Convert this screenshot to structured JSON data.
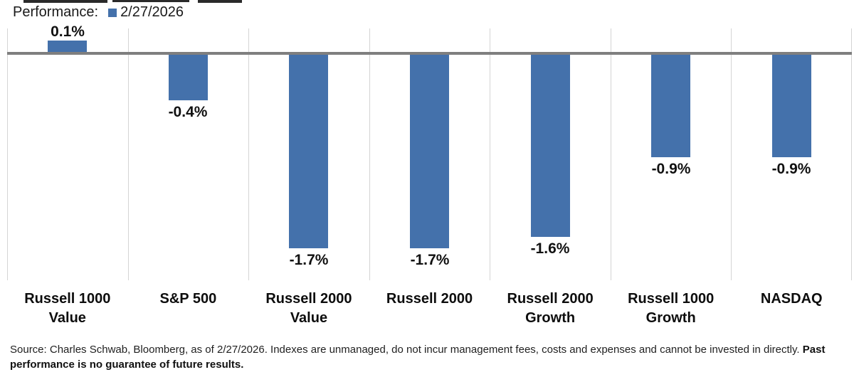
{
  "top_crop_fragments": {
    "note": "cut-off bottom of text row above the screenshot crop"
  },
  "header": {
    "title": "Performance:",
    "legend": {
      "swatch_color": "#4471ab",
      "label": "2/27/2026"
    }
  },
  "chart_data": {
    "type": "bar",
    "title": "Performance: 2/27/2026",
    "categories": [
      "Russell 1000 Value",
      "S&P 500",
      "Russell 2000 Value",
      "Russell 2000",
      "Russell 2000 Growth",
      "Russell 1000 Growth",
      "NASDAQ"
    ],
    "category_lines": [
      [
        "Russell 1000",
        "Value"
      ],
      [
        "S&P 500"
      ],
      [
        "Russell 2000",
        "Value"
      ],
      [
        "Russell 2000"
      ],
      [
        "Russell 2000",
        "Growth"
      ],
      [
        "Russell 1000",
        "Growth"
      ],
      [
        "NASDAQ"
      ]
    ],
    "series": [
      {
        "name": "2/27/2026",
        "values": [
          0.1,
          -0.4,
          -1.7,
          -1.7,
          -1.6,
          -0.9,
          -0.9
        ],
        "labels": [
          "0.1%",
          "-0.4%",
          "-1.7%",
          "-1.7%",
          "-1.6%",
          "-0.9%",
          "-0.9%"
        ]
      }
    ],
    "ylim": [
      -2.0,
      0.2
    ],
    "ylabel": "",
    "xlabel": "",
    "data_labels": true,
    "legend_position": "top-left",
    "grid": "vertical-category-separators",
    "bar_color": "#4471ab",
    "zero_line_color": "#7f7f7f",
    "gridline_color": "#d4d4d4"
  },
  "footer": {
    "line1_regular": "Source: Charles Schwab, Bloomberg, as of 2/27/2026.  Indexes are unmanaged, do not incur management fees, costs and expenses and cannot be invested in directly. ",
    "line1_bold": "Past",
    "line2_bold": "performance is no guarantee of future results."
  }
}
